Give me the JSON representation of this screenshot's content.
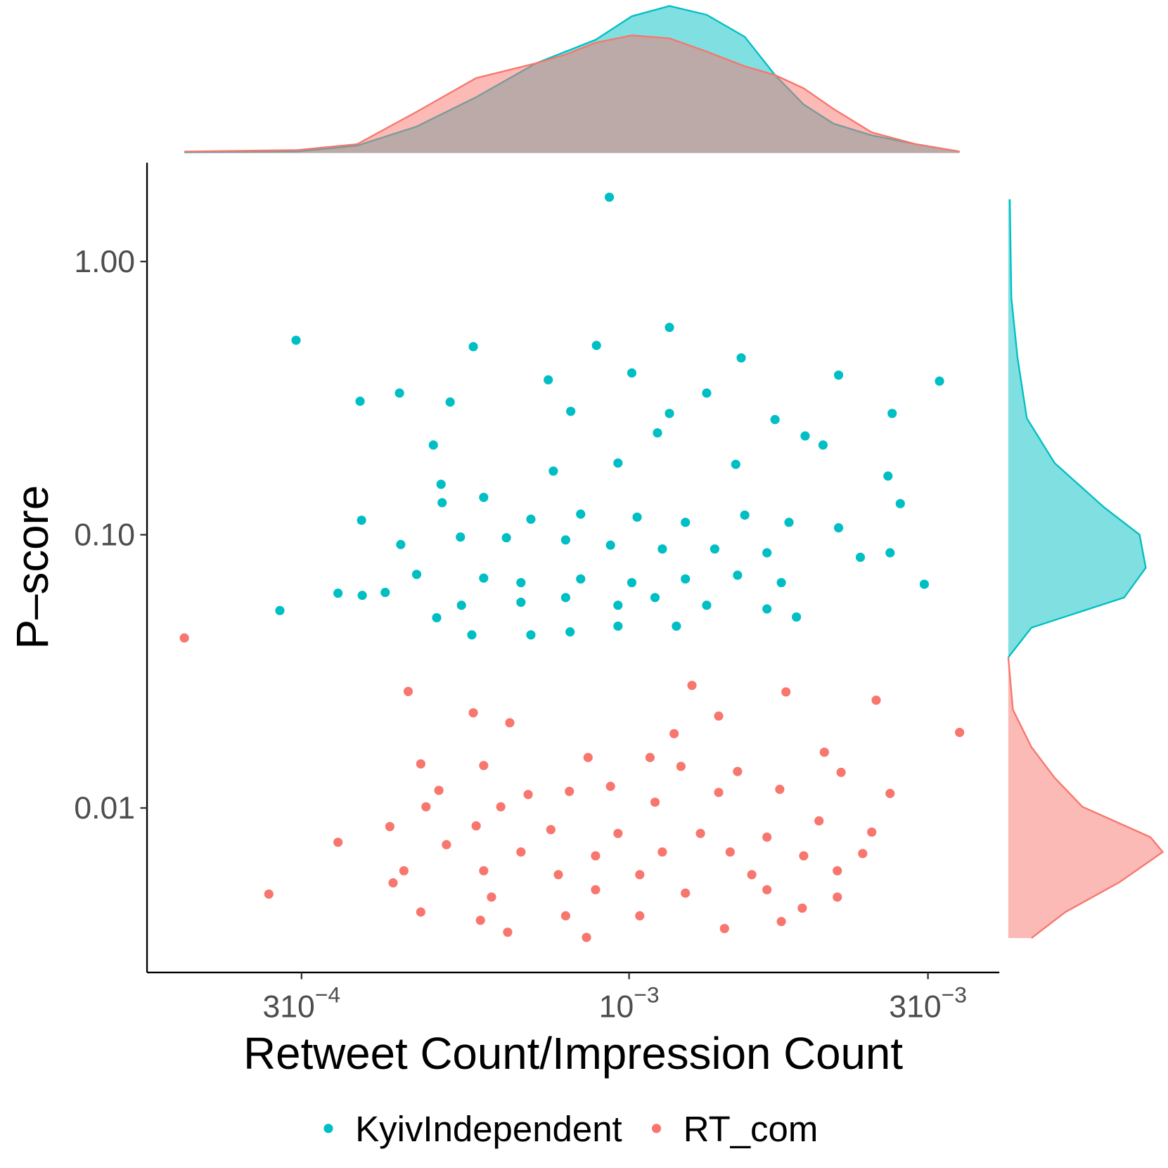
{
  "chart_data": {
    "type": "scatter",
    "x_label": "Retweet Count/Impression Count",
    "y_label": "P–score",
    "x_log": true,
    "y_log": true,
    "xlim": [
      0.00017,
      0.0039
    ],
    "ylim": [
      0.0025,
      2.3
    ],
    "xticks": [
      {
        "value": 0.0003,
        "label": "310",
        "exponent": "−4"
      },
      {
        "value": 0.001,
        "label": "10",
        "exponent": "−3"
      },
      {
        "value": 0.003,
        "label": "310",
        "exponent": "−3"
      }
    ],
    "yticks": [
      {
        "value": 1,
        "label": "1.00"
      },
      {
        "value": 0.1,
        "label": "0.10"
      },
      {
        "value": 0.01,
        "label": "0.01"
      }
    ],
    "legend_position": "bottom",
    "series": [
      {
        "name": "KyivIndependent",
        "color": "#00BFC4",
        "x": [
          0.00093,
          0.000294,
          0.00116,
          0.00313,
          0.00216,
          0.00151,
          0.000564,
          0.000887,
          0.000372,
          0.00043,
          0.000518,
          0.000743,
          0.00101,
          0.00133,
          0.00263,
          0.000487,
          0.000807,
          0.00116,
          0.00171,
          0.00191,
          0.00111,
          0.00204,
          0.00259,
          0.000501,
          0.000757,
          0.00096,
          0.00148,
          0.00271,
          0.000503,
          0.000374,
          0.000697,
          0.000586,
          0.000837,
          0.00103,
          0.00123,
          0.00153,
          0.0018,
          0.00216,
          0.000432,
          0.000538,
          0.000637,
          0.000792,
          0.000934,
          0.00113,
          0.00137,
          0.00166,
          0.00234,
          0.00261,
          0.000458,
          0.000586,
          0.000672,
          0.000837,
          0.00101,
          0.00123,
          0.00149,
          0.00175,
          0.00296,
          0.000343,
          0.000408,
          0.00054,
          0.000672,
          0.000792,
          0.00096,
          0.0011,
          0.00133,
          0.00166,
          0.00185,
          0.000277,
          0.000493,
          0.000697,
          0.000805,
          0.00096,
          0.00119,
          0.000561,
          0.000375
        ],
        "values": [
          1.72,
          0.515,
          0.574,
          0.365,
          0.384,
          0.444,
          0.488,
          0.493,
          0.308,
          0.33,
          0.306,
          0.369,
          0.391,
          0.33,
          0.278,
          0.213,
          0.283,
          0.278,
          0.264,
          0.23,
          0.236,
          0.213,
          0.164,
          0.153,
          0.171,
          0.183,
          0.181,
          0.13,
          0.131,
          0.113,
          0.114,
          0.137,
          0.119,
          0.116,
          0.111,
          0.118,
          0.111,
          0.106,
          0.0921,
          0.0981,
          0.0975,
          0.0957,
          0.0916,
          0.0887,
          0.0887,
          0.0859,
          0.0827,
          0.0859,
          0.0716,
          0.0694,
          0.0668,
          0.0689,
          0.0668,
          0.0689,
          0.0711,
          0.0668,
          0.0659,
          0.0611,
          0.0615,
          0.0552,
          0.0566,
          0.0589,
          0.0552,
          0.0589,
          0.0552,
          0.0535,
          0.05,
          0.0528,
          0.0497,
          0.043,
          0.0441,
          0.0463,
          0.0463,
          0.043,
          0.06
        ]
      },
      {
        "name": "RT_com",
        "color": "#F8766D",
        "x": [
          0.000195,
          0.000444,
          0.00126,
          0.00178,
          0.00248,
          0.00337,
          0.000564,
          0.000645,
          0.00118,
          0.00139,
          0.00205,
          0.000465,
          0.000586,
          0.00086,
          0.00108,
          0.00121,
          0.00149,
          0.00218,
          0.000497,
          0.00069,
          0.000803,
          0.000934,
          0.00139,
          0.00174,
          0.00261,
          0.000474,
          0.000624,
          0.0011,
          0.000415,
          0.000343,
          0.00057,
          0.00075,
          0.00096,
          0.0013,
          0.00166,
          0.00201,
          0.00244,
          0.000511,
          0.000672,
          0.000884,
          0.00113,
          0.00145,
          0.0019,
          0.00236,
          0.000437,
          0.000586,
          0.000771,
          0.00104,
          0.00157,
          0.00215,
          0.00042,
          0.000603,
          0.000884,
          0.00123,
          0.00166,
          0.00215,
          0.000266,
          0.000465,
          0.000792,
          0.00104,
          0.00189,
          0.00064,
          0.000855,
          0.00142,
          0.00175,
          0.000579
        ],
        "values": [
          0.0419,
          0.0267,
          0.0281,
          0.0266,
          0.0248,
          0.0189,
          0.0223,
          0.0205,
          0.0187,
          0.0217,
          0.016,
          0.0145,
          0.0143,
          0.0153,
          0.0153,
          0.0142,
          0.0136,
          0.0135,
          0.0116,
          0.0112,
          0.0115,
          0.012,
          0.0114,
          0.0117,
          0.0113,
          0.0101,
          0.0101,
          0.0105,
          0.00855,
          0.00749,
          0.0086,
          0.00833,
          0.00807,
          0.00807,
          0.00782,
          0.00897,
          0.00816,
          0.00734,
          0.0069,
          0.00668,
          0.0069,
          0.0069,
          0.00668,
          0.00681,
          0.00589,
          0.00589,
          0.0057,
          0.0057,
          0.0057,
          0.00589,
          0.00532,
          0.00472,
          0.00502,
          0.00488,
          0.00502,
          0.00472,
          0.00484,
          0.00416,
          0.00403,
          0.00403,
          0.0043,
          0.00351,
          0.00336,
          0.00362,
          0.00384,
          0.00388
        ]
      }
    ],
    "density_lim": [
      0,
      1
    ],
    "marginal_x": {
      "type": "density",
      "x": [
        0.000195,
        0.000295,
        0.000368,
        0.000458,
        0.00057,
        0.00071,
        0.000792,
        0.000884,
        0.00101,
        0.00116,
        0.00133,
        0.00153,
        0.00171,
        0.0019,
        0.00212,
        0.00244,
        0.00287,
        0.00337
      ],
      "series": [
        {
          "values": [
            0.005,
            0.01,
            0.05,
            0.18,
            0.38,
            0.61,
            0.69,
            0.77,
            0.93,
            1.0,
            0.94,
            0.79,
            0.53,
            0.33,
            0.2,
            0.12,
            0.06,
            0.01
          ]
        },
        {
          "values": [
            0.01,
            0.02,
            0.06,
            0.28,
            0.51,
            0.61,
            0.67,
            0.75,
            0.8,
            0.78,
            0.69,
            0.59,
            0.53,
            0.44,
            0.3,
            0.14,
            0.06,
            0.01
          ]
        }
      ]
    },
    "marginal_y": {
      "type": "density",
      "series": [
        {
          "y": [
            1.69,
            0.735,
            0.444,
            0.267,
            0.183,
            0.126,
            0.1,
            0.0757,
            0.0589,
            0.0457,
            0.0356
          ],
          "values": [
            0.01,
            0.02,
            0.06,
            0.12,
            0.3,
            0.62,
            0.85,
            0.89,
            0.75,
            0.15,
            0
          ]
        },
        {
          "y": [
            0.0356,
            0.0229,
            0.0167,
            0.0129,
            0.0101,
            0.00782,
            0.0069,
            0.00535,
            0.00416,
            0.00334
          ],
          "values": [
            0,
            0.03,
            0.15,
            0.3,
            0.48,
            0.92,
            1.0,
            0.72,
            0.37,
            0.15
          ]
        }
      ]
    }
  }
}
